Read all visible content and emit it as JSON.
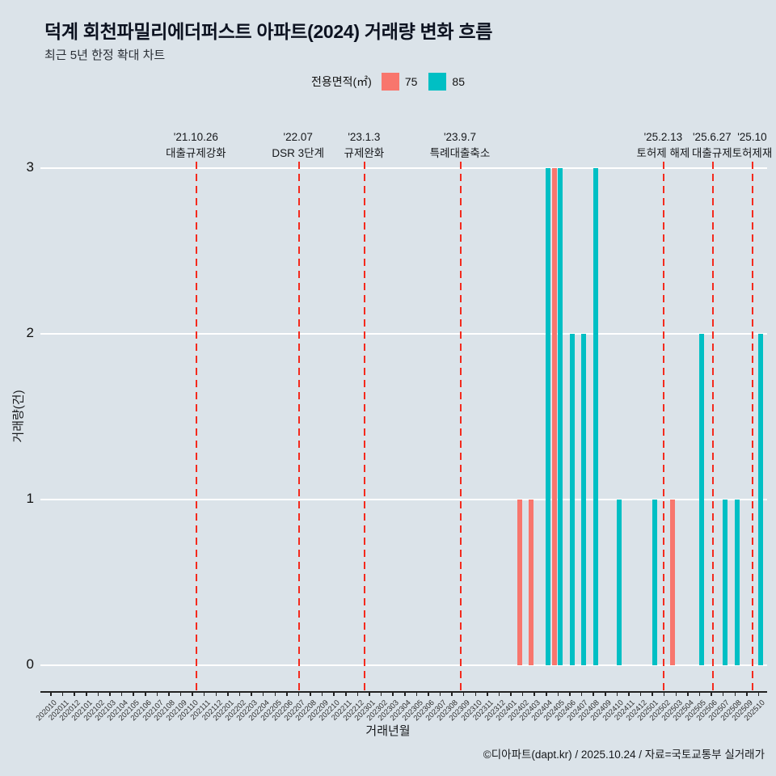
{
  "title": "덕계 회천파밀리에더퍼스트 아파트(2024) 거래량 변화 흐름",
  "subtitle": "최근 5년 한정 확대 차트",
  "legend": {
    "label": "전용면적(㎡)",
    "items": [
      {
        "name": "75",
        "color": "#F8766D"
      },
      {
        "name": "85",
        "color": "#00BFC4"
      }
    ]
  },
  "colors": {
    "background": "#dbe3e9",
    "grid": "#ffffff",
    "axis": "#222222",
    "annotation_line": "#f42a1d",
    "series_75": "#F8766D",
    "series_85": "#00BFC4"
  },
  "chart_data": {
    "type": "bar",
    "title": "덕계 회천파밀리에더퍼스트 아파트(2024) 거래량 변화 흐름",
    "xlabel": "거래년월",
    "ylabel": "거래량(건)",
    "ylim": [
      0,
      3
    ],
    "yticks": [
      0,
      1,
      2,
      3
    ],
    "grid": "horizontal-white-major",
    "legend_position": "top",
    "categories": [
      "202010",
      "202011",
      "202012",
      "202101",
      "202102",
      "202103",
      "202104",
      "202105",
      "202106",
      "202107",
      "202108",
      "202109",
      "202110",
      "202111",
      "202112",
      "202201",
      "202202",
      "202203",
      "202204",
      "202205",
      "202206",
      "202207",
      "202208",
      "202209",
      "202210",
      "202211",
      "202212",
      "202301",
      "202302",
      "202303",
      "202304",
      "202305",
      "202306",
      "202307",
      "202308",
      "202309",
      "202310",
      "202311",
      "202312",
      "202401",
      "202402",
      "202403",
      "202404",
      "202405",
      "202406",
      "202407",
      "202408",
      "202409",
      "202410",
      "202411",
      "202412",
      "202501",
      "202502",
      "202503",
      "202504",
      "202505",
      "202506",
      "202507",
      "202508",
      "202509",
      "202510"
    ],
    "series": [
      {
        "name": "75",
        "color": "#F8766D",
        "values": [
          0,
          0,
          0,
          0,
          0,
          0,
          0,
          0,
          0,
          0,
          0,
          0,
          0,
          0,
          0,
          0,
          0,
          0,
          0,
          0,
          0,
          0,
          0,
          0,
          0,
          0,
          0,
          0,
          0,
          0,
          0,
          0,
          0,
          0,
          0,
          0,
          0,
          0,
          0,
          0,
          1,
          1,
          0,
          3,
          0,
          0,
          0,
          0,
          0,
          0,
          0,
          0,
          0,
          1,
          0,
          0,
          0,
          0,
          0,
          0,
          0
        ]
      },
      {
        "name": "85",
        "color": "#00BFC4",
        "values": [
          0,
          0,
          0,
          0,
          0,
          0,
          0,
          0,
          0,
          0,
          0,
          0,
          0,
          0,
          0,
          0,
          0,
          0,
          0,
          0,
          0,
          0,
          0,
          0,
          0,
          0,
          0,
          0,
          0,
          0,
          0,
          0,
          0,
          0,
          0,
          0,
          0,
          0,
          0,
          0,
          0,
          0,
          3,
          3,
          2,
          2,
          3,
          0,
          1,
          0,
          0,
          1,
          0,
          0,
          0,
          2,
          0,
          1,
          1,
          0,
          2
        ]
      }
    ],
    "annotations": [
      {
        "date": "'21.10.26",
        "text": "대출규제강화",
        "month": "202110",
        "offset": 0.84
      },
      {
        "date": "'22.07",
        "text": "DSR 3단계",
        "month": "202207",
        "offset": 0.5
      },
      {
        "date": "'23.1.3",
        "text": "규제완화",
        "month": "202301",
        "offset": 0.1
      },
      {
        "date": "'23.9.7",
        "text": "특례대출축소",
        "month": "202309",
        "offset": 0.23
      },
      {
        "date": "'25.2.13",
        "text": "토허제 해제",
        "month": "202502",
        "offset": 0.46
      },
      {
        "date": "'25.6.27",
        "text": "대출규제",
        "month": "202506",
        "offset": 0.6
      },
      {
        "date": "'25.10",
        "text": "토허제재",
        "month": "202510",
        "offset": 0.0
      }
    ]
  },
  "footer": "©디아파트(dapt.kr) / 2025.10.24 / 자료=국토교통부 실거래가"
}
